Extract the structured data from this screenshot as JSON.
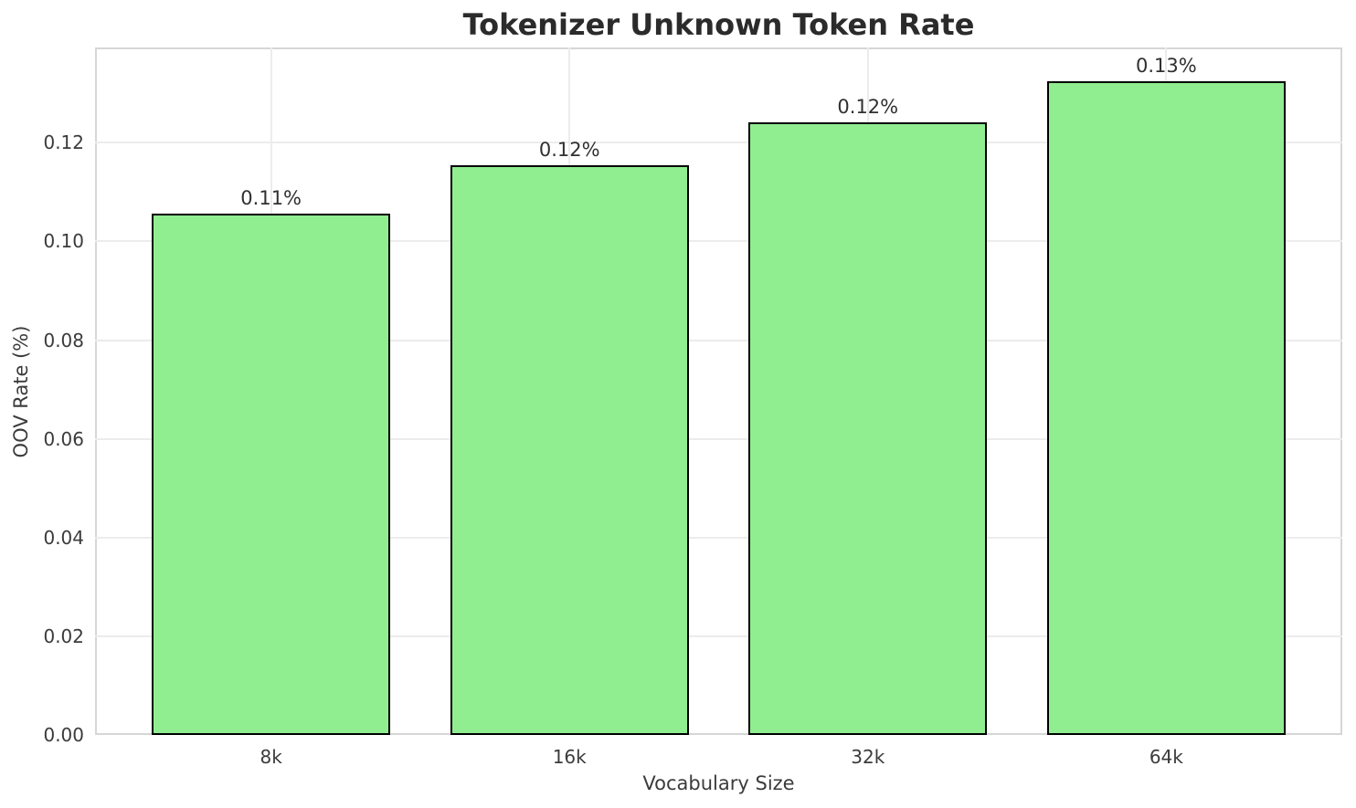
{
  "chart_data": {
    "type": "bar",
    "title": "Tokenizer Unknown Token Rate",
    "xlabel": "Vocabulary Size",
    "ylabel": "OOV Rate (%)",
    "categories": [
      "8k",
      "16k",
      "32k",
      "64k"
    ],
    "values": [
      0.1057,
      0.1155,
      0.1242,
      0.1324
    ],
    "bar_labels": [
      "0.11%",
      "0.12%",
      "0.12%",
      "0.13%"
    ],
    "x_positions": [
      0,
      1,
      2,
      3
    ],
    "bar_width": 0.8,
    "xlim": [
      -0.59,
      3.59
    ],
    "ylim": [
      0,
      0.1393
    ],
    "yticks": [
      0,
      0.02,
      0.04,
      0.06,
      0.08,
      0.1,
      0.12
    ],
    "ytick_labels": [
      "0.00",
      "0.02",
      "0.04",
      "0.06",
      "0.08",
      "0.10",
      "0.12"
    ],
    "grid": true,
    "legend": "none",
    "colors": {
      "bar_fill": "#90EE90",
      "bar_edge": "#000000",
      "grid": "#ececec",
      "spine": "#d6d6d6",
      "title_text": "#2b2b2b",
      "tick_text": "#3b3b3b"
    }
  }
}
